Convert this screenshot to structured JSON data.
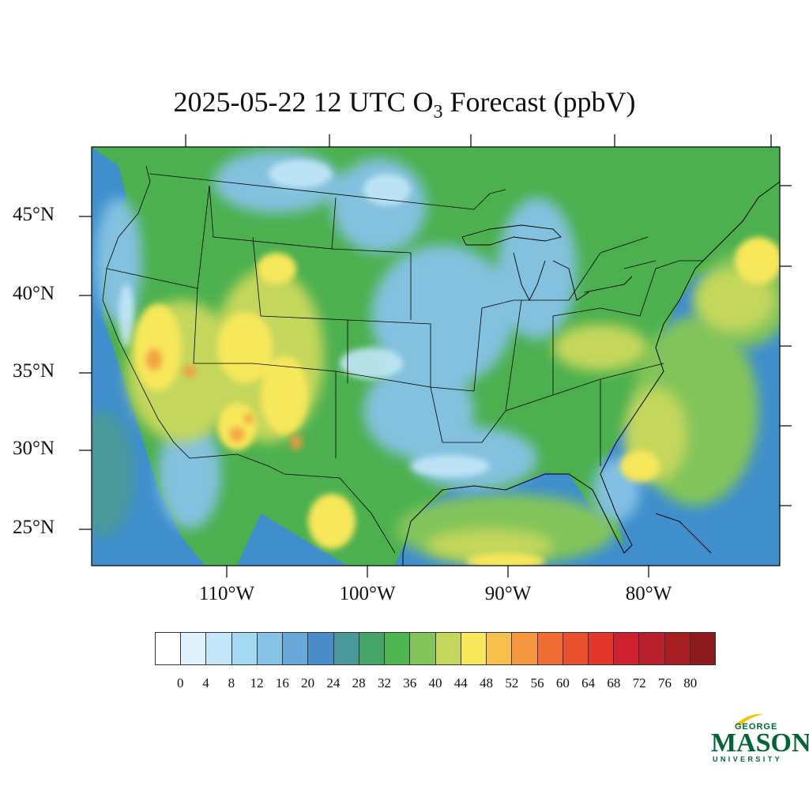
{
  "title": {
    "main": "2025-05-22 12 UTC O",
    "subscript": "3",
    "suffix": " Forecast (ppbV)"
  },
  "latitude_labels": [
    "45°N",
    "40°N",
    "35°N",
    "30°N",
    "25°N"
  ],
  "longitude_labels": [
    "110°W",
    "100°W",
    "90°W",
    "80°W"
  ],
  "colorbar": {
    "values": [
      "0",
      "4",
      "8",
      "12",
      "16",
      "20",
      "24",
      "28",
      "32",
      "36",
      "40",
      "44",
      "48",
      "52",
      "56",
      "60",
      "64",
      "68",
      "72",
      "76",
      "80"
    ],
    "colors": [
      "#ffffff",
      "#dff1fb",
      "#c3e7f8",
      "#a4d9f4",
      "#86c2e6",
      "#68a9da",
      "#4a8cc8",
      "#49999b",
      "#45a569",
      "#4db650",
      "#82c45a",
      "#c4d75c",
      "#f7e75a",
      "#f7c04d",
      "#f5983f",
      "#ef6d32",
      "#e9502d",
      "#e13629",
      "#cf2030",
      "#b8202c",
      "#a51e22",
      "#8c1a1c"
    ]
  },
  "logo": {
    "line1": "GEORGE",
    "line2": "MASON",
    "line3": "UNIVERSITY"
  },
  "map_colors": {
    "ocean": "#3f8fcd",
    "land_base": "#4cb04f",
    "low": "#7cbfe6",
    "very_low": "#bfe4f6",
    "mid_high": "#c4d75c",
    "high": "#f7e75a",
    "peak": "#f5983f",
    "borders": "#000000"
  }
}
